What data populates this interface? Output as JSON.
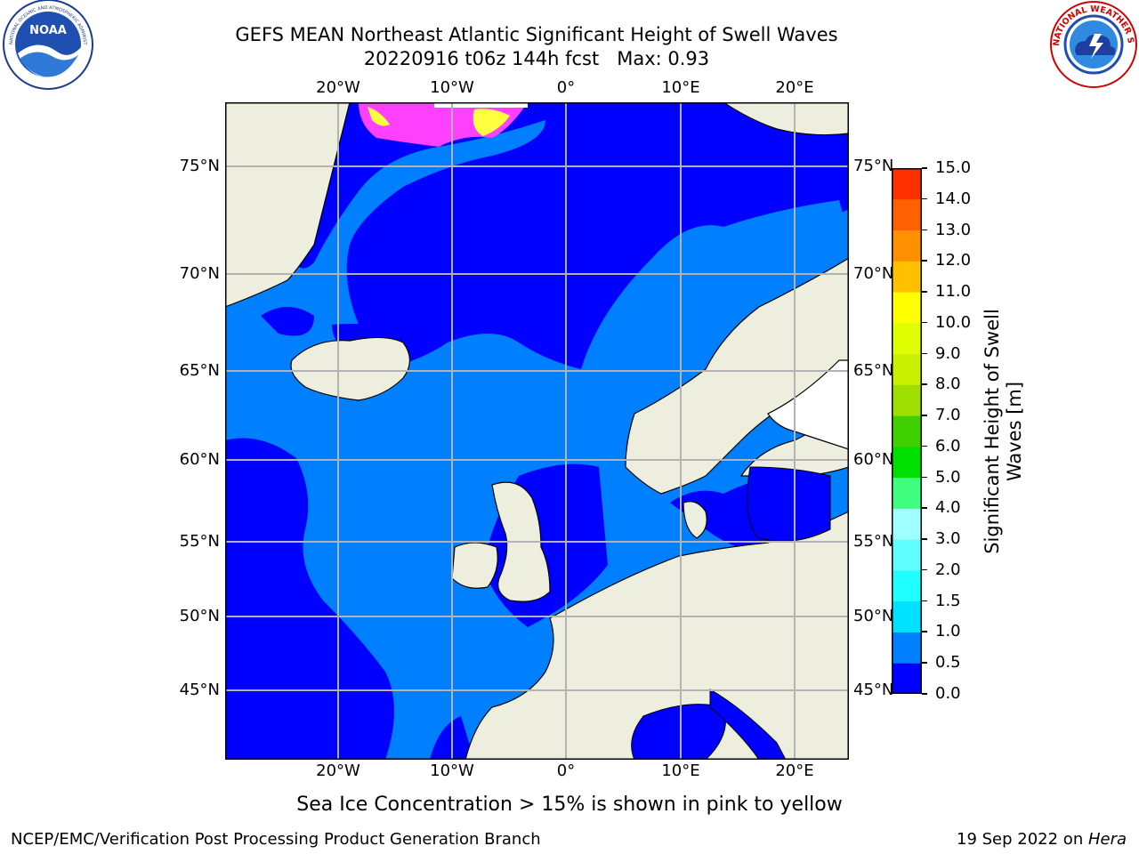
{
  "header": {
    "title_line1": "GEFS MEAN Northeast Atlantic Significant Height of Swell Waves",
    "title_line2": "20220916 t06z 144h fcst   Max: 0.93"
  },
  "logos": {
    "noaa": {
      "text": "NOAA",
      "ring_text": "NATIONAL OCEANIC AND ATMOSPHERIC ADMINISTRATION · U.S. DEPARTMENT OF COMMERCE"
    },
    "nws": {
      "ring_text": "NATIONAL WEATHER SERVICE"
    }
  },
  "map": {
    "lon_labels": [
      "20°W",
      "10°W",
      "0°",
      "10°E",
      "20°E"
    ],
    "lat_labels": [
      "75°N",
      "70°N",
      "65°N",
      "60°N",
      "55°N",
      "50°N",
      "45°N"
    ],
    "colors": {
      "ocean_light": "#0080ff",
      "ocean_dark": "#0000ff",
      "land": "#eeeedf",
      "grid": "#b3b3b3",
      "ice_pink": "#ff40ff",
      "ice_yellow": "#ffff40"
    }
  },
  "colorbar": {
    "title_line1": "Significant Height of Swell",
    "title_line2": "Waves [m]",
    "tick_labels": [
      "0.0",
      "0.5",
      "1.0",
      "1.5",
      "2.0",
      "3.0",
      "4.0",
      "5.0",
      "6.0",
      "7.0",
      "8.0",
      "9.0",
      "10.0",
      "11.0",
      "12.0",
      "13.0",
      "14.0",
      "15.0"
    ],
    "colors": [
      "#0000ff",
      "#0080ff",
      "#00e0ff",
      "#20ffff",
      "#60ffff",
      "#a0ffff",
      "#40ff80",
      "#00e000",
      "#40d000",
      "#a0e000",
      "#c8f000",
      "#e0ff00",
      "#ffff00",
      "#ffc000",
      "#ff9000",
      "#ff6000",
      "#ff3000",
      "#ff0000"
    ]
  },
  "caption": "Sea Ice Concentration > 15% is shown in pink to yellow",
  "footer": {
    "left": "NCEP/EMC/Verification Post Processing Product Generation Branch",
    "right_prefix": "19 Sep 2022 on ",
    "right_italic": "Hera"
  }
}
